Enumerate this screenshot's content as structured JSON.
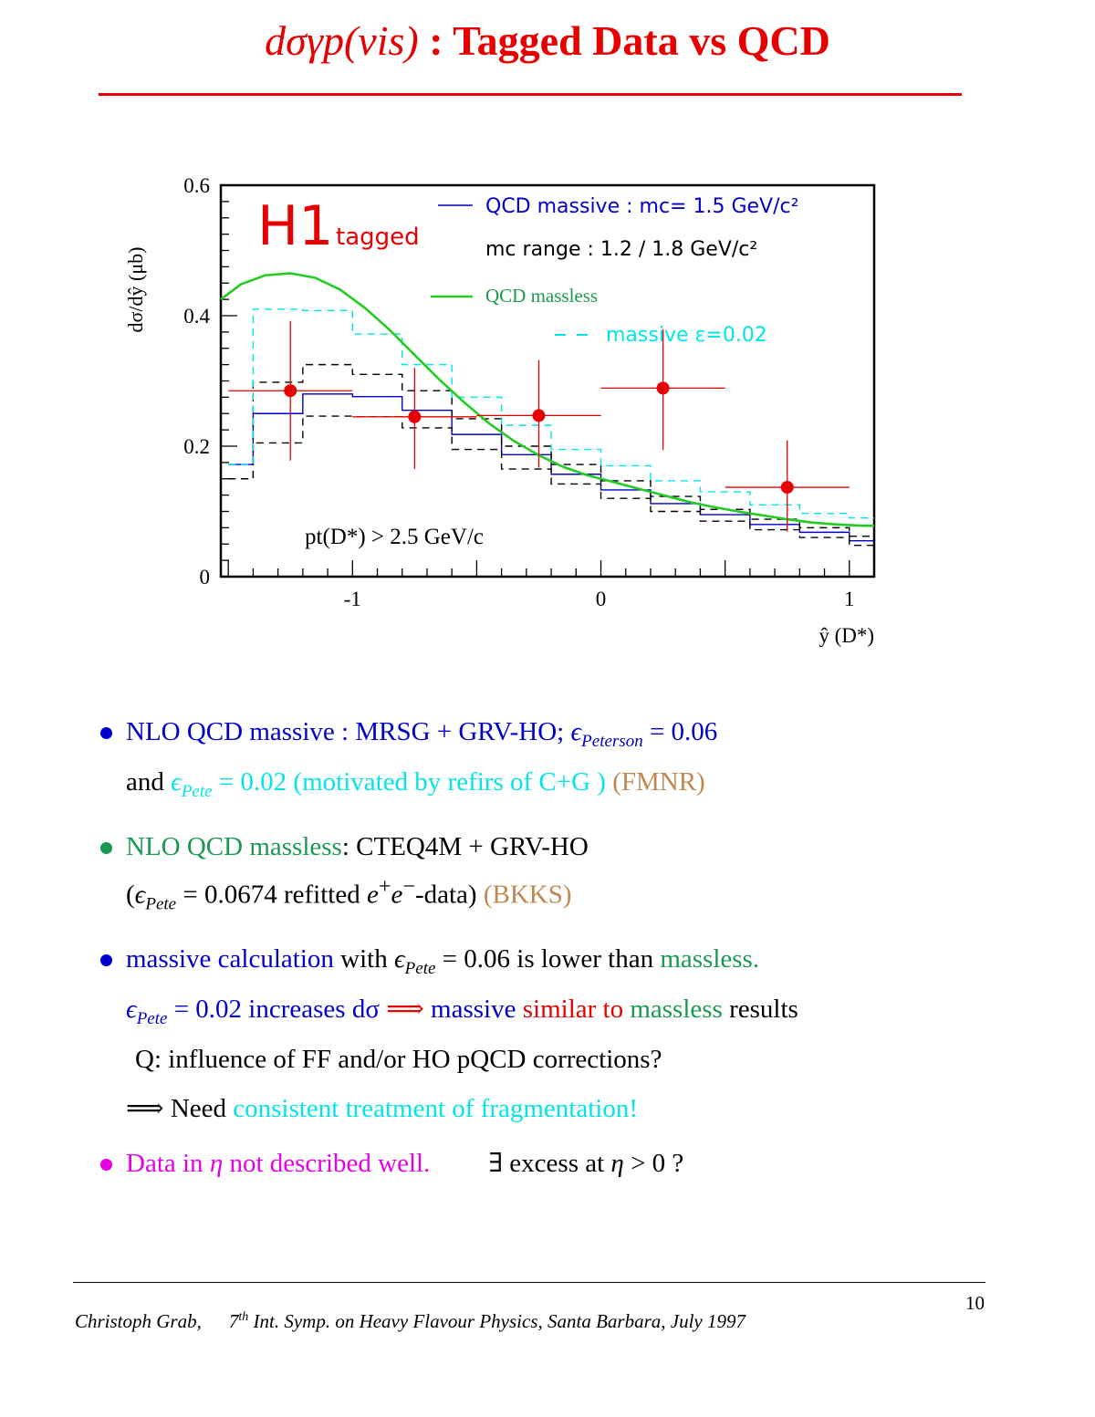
{
  "page": {
    "title_math": "dσγp(vis)",
    "title_text": " : Tagged Data vs QCD",
    "colors": {
      "title": "#e60000",
      "blue": "#0000cc",
      "cyan": "#00e5e5",
      "green": "#1a9a50",
      "brown": "#c08850",
      "red": "#e60000",
      "magenta": "#e600e6"
    }
  },
  "chart_data": {
    "type": "line",
    "ylabel": "dσ/dŷ  (μb)",
    "xlabel": "ŷ (D*)",
    "xlim": [
      -1.53,
      1.1
    ],
    "ylim": [
      0,
      0.6
    ],
    "x_ticks": [
      "-1",
      "0",
      "1"
    ],
    "y_ticks": [
      "0",
      "0.2",
      "0.4",
      "0.6"
    ],
    "experiment_label": "H1",
    "experiment_sublabel": "tagged",
    "cut_label": "pt(D*) > 2.5 GeV/c",
    "legend": [
      {
        "text": "QCD massive : mc= 1.5 GeV/c²",
        "style": "solid",
        "color": "#0000cc"
      },
      {
        "text": "mc range : 1.2 / 1.8  GeV/c²",
        "style": "dashed",
        "color": "#000000"
      },
      {
        "text": "QCD massless",
        "style": "solid",
        "color": "#22cc22"
      },
      {
        "text": "massive ε=0.02",
        "style": "dashed",
        "color": "#00e5e5"
      }
    ],
    "data_points": [
      {
        "x": -1.25,
        "y": 0.285,
        "xerr": 0.25,
        "yerr_up": 0.107,
        "yerr_down": 0.107
      },
      {
        "x": -0.75,
        "y": 0.245,
        "xerr": 0.25,
        "yerr_up": 0.075,
        "yerr_down": 0.08
      },
      {
        "x": -0.25,
        "y": 0.247,
        "xerr": 0.25,
        "yerr_up": 0.085,
        "yerr_down": 0.08
      },
      {
        "x": 0.25,
        "y": 0.289,
        "xerr": 0.25,
        "yerr_up": 0.09,
        "yerr_down": 0.095
      },
      {
        "x": 0.75,
        "y": 0.137,
        "xerr": 0.25,
        "yerr_up": 0.072,
        "yerr_down": 0.068
      }
    ],
    "bin_edges": [
      -1.5,
      -1.4,
      -1.2,
      -1.0,
      -0.8,
      -0.6,
      -0.4,
      -0.2,
      0.0,
      0.2,
      0.4,
      0.6,
      0.8,
      1.0,
      1.1
    ],
    "series": [
      {
        "name": "QCD massive : mc= 1.5 GeV/c²",
        "kind": "hist",
        "values": [
          0.172,
          0.25,
          0.28,
          0.276,
          0.255,
          0.218,
          0.187,
          0.157,
          0.133,
          0.112,
          0.095,
          0.08,
          0.068,
          0.055
        ]
      },
      {
        "name": "mc range upper",
        "kind": "hist",
        "values": [
          0.15,
          0.298,
          0.325,
          0.31,
          0.285,
          0.242,
          0.2,
          0.172,
          0.147,
          0.123,
          0.103,
          0.088,
          0.075,
          0.062
        ]
      },
      {
        "name": "mc range lower",
        "kind": "hist",
        "values": [
          0.15,
          0.205,
          0.246,
          0.245,
          0.228,
          0.195,
          0.165,
          0.142,
          0.12,
          0.1,
          0.085,
          0.072,
          0.06,
          0.048
        ]
      },
      {
        "name": "massive ε=0.02",
        "kind": "hist",
        "values": [
          0.172,
          0.41,
          0.408,
          0.372,
          0.325,
          0.275,
          0.232,
          0.195,
          0.17,
          0.147,
          0.13,
          0.11,
          0.097,
          0.09
        ]
      },
      {
        "name": "QCD massless",
        "kind": "curve",
        "x": [
          -1.53,
          -1.45,
          -1.35,
          -1.25,
          -1.15,
          -1.05,
          -0.95,
          -0.85,
          -0.75,
          -0.65,
          -0.55,
          -0.45,
          -0.35,
          -0.25,
          -0.15,
          -0.05,
          0.05,
          0.15,
          0.25,
          0.35,
          0.45,
          0.55,
          0.65,
          0.75,
          0.85,
          0.95,
          1.05,
          1.1
        ],
        "y": [
          0.425,
          0.448,
          0.462,
          0.465,
          0.458,
          0.44,
          0.412,
          0.378,
          0.34,
          0.302,
          0.267,
          0.235,
          0.208,
          0.186,
          0.168,
          0.155,
          0.145,
          0.135,
          0.125,
          0.115,
          0.107,
          0.1,
          0.094,
          0.088,
          0.083,
          0.08,
          0.078,
          0.078
        ]
      }
    ]
  },
  "bullets": {
    "b1": {
      "l1a": "NLO QCD massive : MRSG + GRV-HO; ",
      "eps": "ϵ",
      "sub1": "Peterson",
      "l1b": " = 0.06",
      "l2a": "and ",
      "l2eps": "ϵ",
      "l2sub": "Pete",
      "l2b": " = 0.02 (motivated by refirs of C+G )",
      "l2c": " (FMNR)"
    },
    "b2": {
      "l1a": "NLO QCD massless",
      "l1b": ": CTEQ4M + GRV-HO",
      "l2a": "(",
      "l2eps": "ϵ",
      "l2sub": "Pete",
      "l2b": " = 0.0674 refitted ",
      "l2e": "e",
      "l2plus": "+",
      "l2e2": "e",
      "l2minus": "−",
      "l2c": "-data)",
      "l2d": " (BKKS)"
    },
    "b3": {
      "l1a": "massive calculation",
      "l1b": " with ",
      "l1eps": "ϵ",
      "l1sub": "Pete",
      "l1c": " = 0.06 is lower than ",
      "l1d": " massless.",
      "l2eps": "ϵ",
      "l2sub": "Pete",
      "l2a": " = 0.02  increases dσ ",
      "l2arrow": " ⟹ ",
      "l2b": "massive",
      "l2c": " similar to ",
      "l2d": " massless ",
      "l2e": "  results",
      "l3": "Q: influence of FF and/or HO pQCD corrections?",
      "l4arrow": "⟹",
      "l4a": " Need ",
      "l4b": "consistent treatment of fragmentation!"
    },
    "b4": {
      "l1a": "Data in ",
      "l1eta": "η",
      "l1b": " not described well.",
      "l1c": "∃ excess at ",
      "l1eta2": "η",
      "l1d": " > 0 ?"
    }
  },
  "footer": {
    "author": "Christoph Grab,",
    "ord": "7",
    "ord_sup": "th",
    "conf": " Int.  Symp.  on Heavy Flavour Physics, Santa Barbara, July 1997",
    "page_number": "10"
  }
}
